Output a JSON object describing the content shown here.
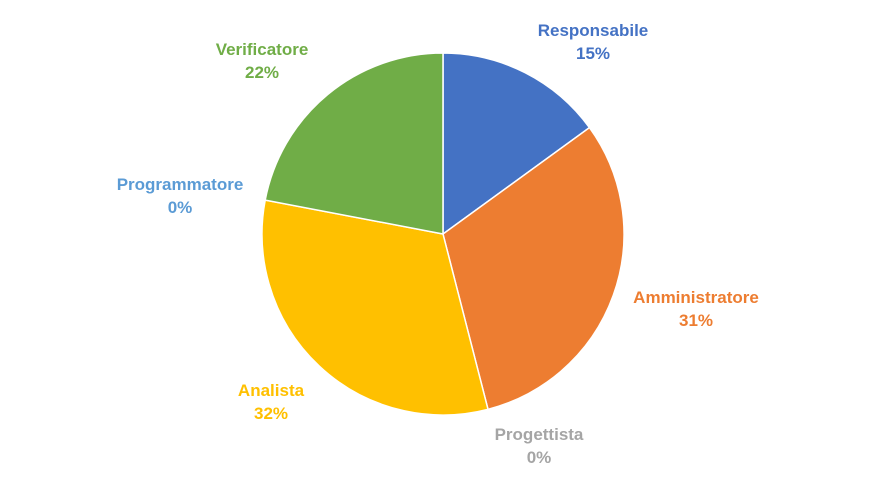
{
  "chart_data": {
    "type": "pie",
    "title": "",
    "slices": [
      {
        "label": "Responsabile",
        "value": 15,
        "value_label": "15%",
        "color": "#4472C4"
      },
      {
        "label": "Amministratore",
        "value": 31,
        "value_label": "31%",
        "color": "#ED7D31"
      },
      {
        "label": "Progettista",
        "value": 0,
        "value_label": "0%",
        "color": "#A5A5A5"
      },
      {
        "label": "Analista",
        "value": 32,
        "value_label": "32%",
        "color": "#FFC000"
      },
      {
        "label": "Programmatore",
        "value": 0,
        "value_label": "0%",
        "color": "#5B9BD5"
      },
      {
        "label": "Verificatore",
        "value": 22,
        "value_label": "22%",
        "color": "#70AD47"
      }
    ],
    "start_angle_deg": 0,
    "direction": "clockwise",
    "legend": "none",
    "data_labels": "outside"
  }
}
